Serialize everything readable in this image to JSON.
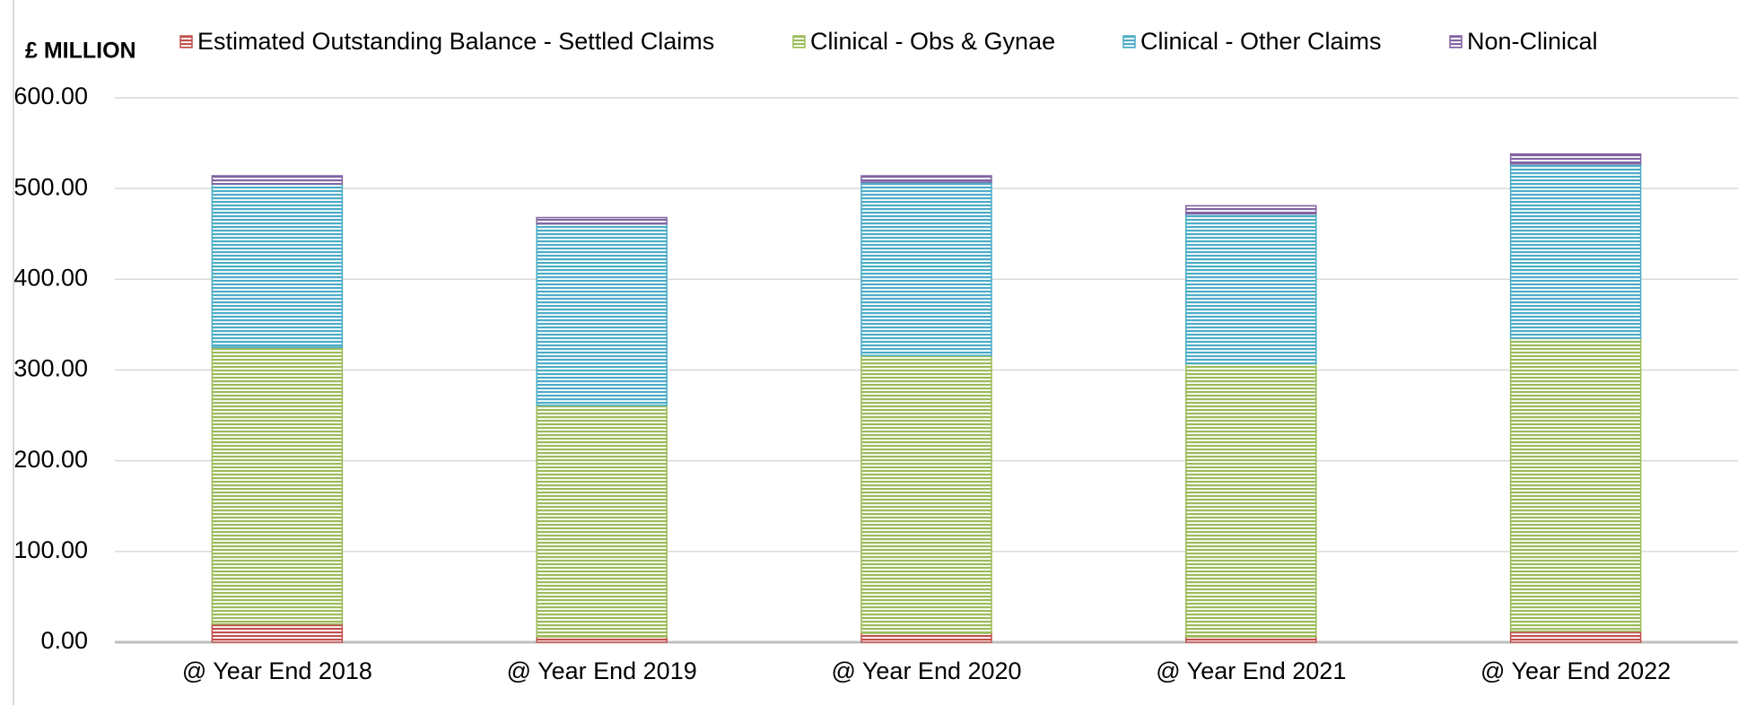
{
  "chart_data": {
    "type": "stacked_bar",
    "y_label": "£ MILLION",
    "categories": [
      "@ Year End 2018",
      "@ Year End 2019",
      "@ Year End 2020",
      "@ Year End 2021",
      "@ Year End 2022"
    ],
    "series": [
      {
        "name": "Estimated Outstanding Balance - Settled Claims",
        "color": "#c0504d",
        "values": [
          20,
          6,
          10,
          6,
          12
        ]
      },
      {
        "name": "Clinical - Obs & Gynae",
        "color": "#9bbb59",
        "values": [
          305,
          255,
          306,
          301,
          323
        ]
      },
      {
        "name": "Clinical - Other Claims",
        "color": "#4bacc6",
        "values": [
          180,
          200,
          191,
          165,
          192
        ]
      },
      {
        "name": "Non-Clinical",
        "color": "#8064a2",
        "values": [
          9,
          7,
          7,
          9,
          11
        ]
      }
    ],
    "ylim": [
      0,
      600
    ],
    "yticks": [
      {
        "value": 0,
        "label": "0.00"
      },
      {
        "value": 100,
        "label": "100.00"
      },
      {
        "value": 200,
        "label": "200.00"
      },
      {
        "value": 300,
        "label": "300.00"
      },
      {
        "value": 400,
        "label": "400.00"
      },
      {
        "value": 500,
        "label": "500.00"
      },
      {
        "value": 600,
        "label": "600.00"
      }
    ],
    "grid": true
  }
}
